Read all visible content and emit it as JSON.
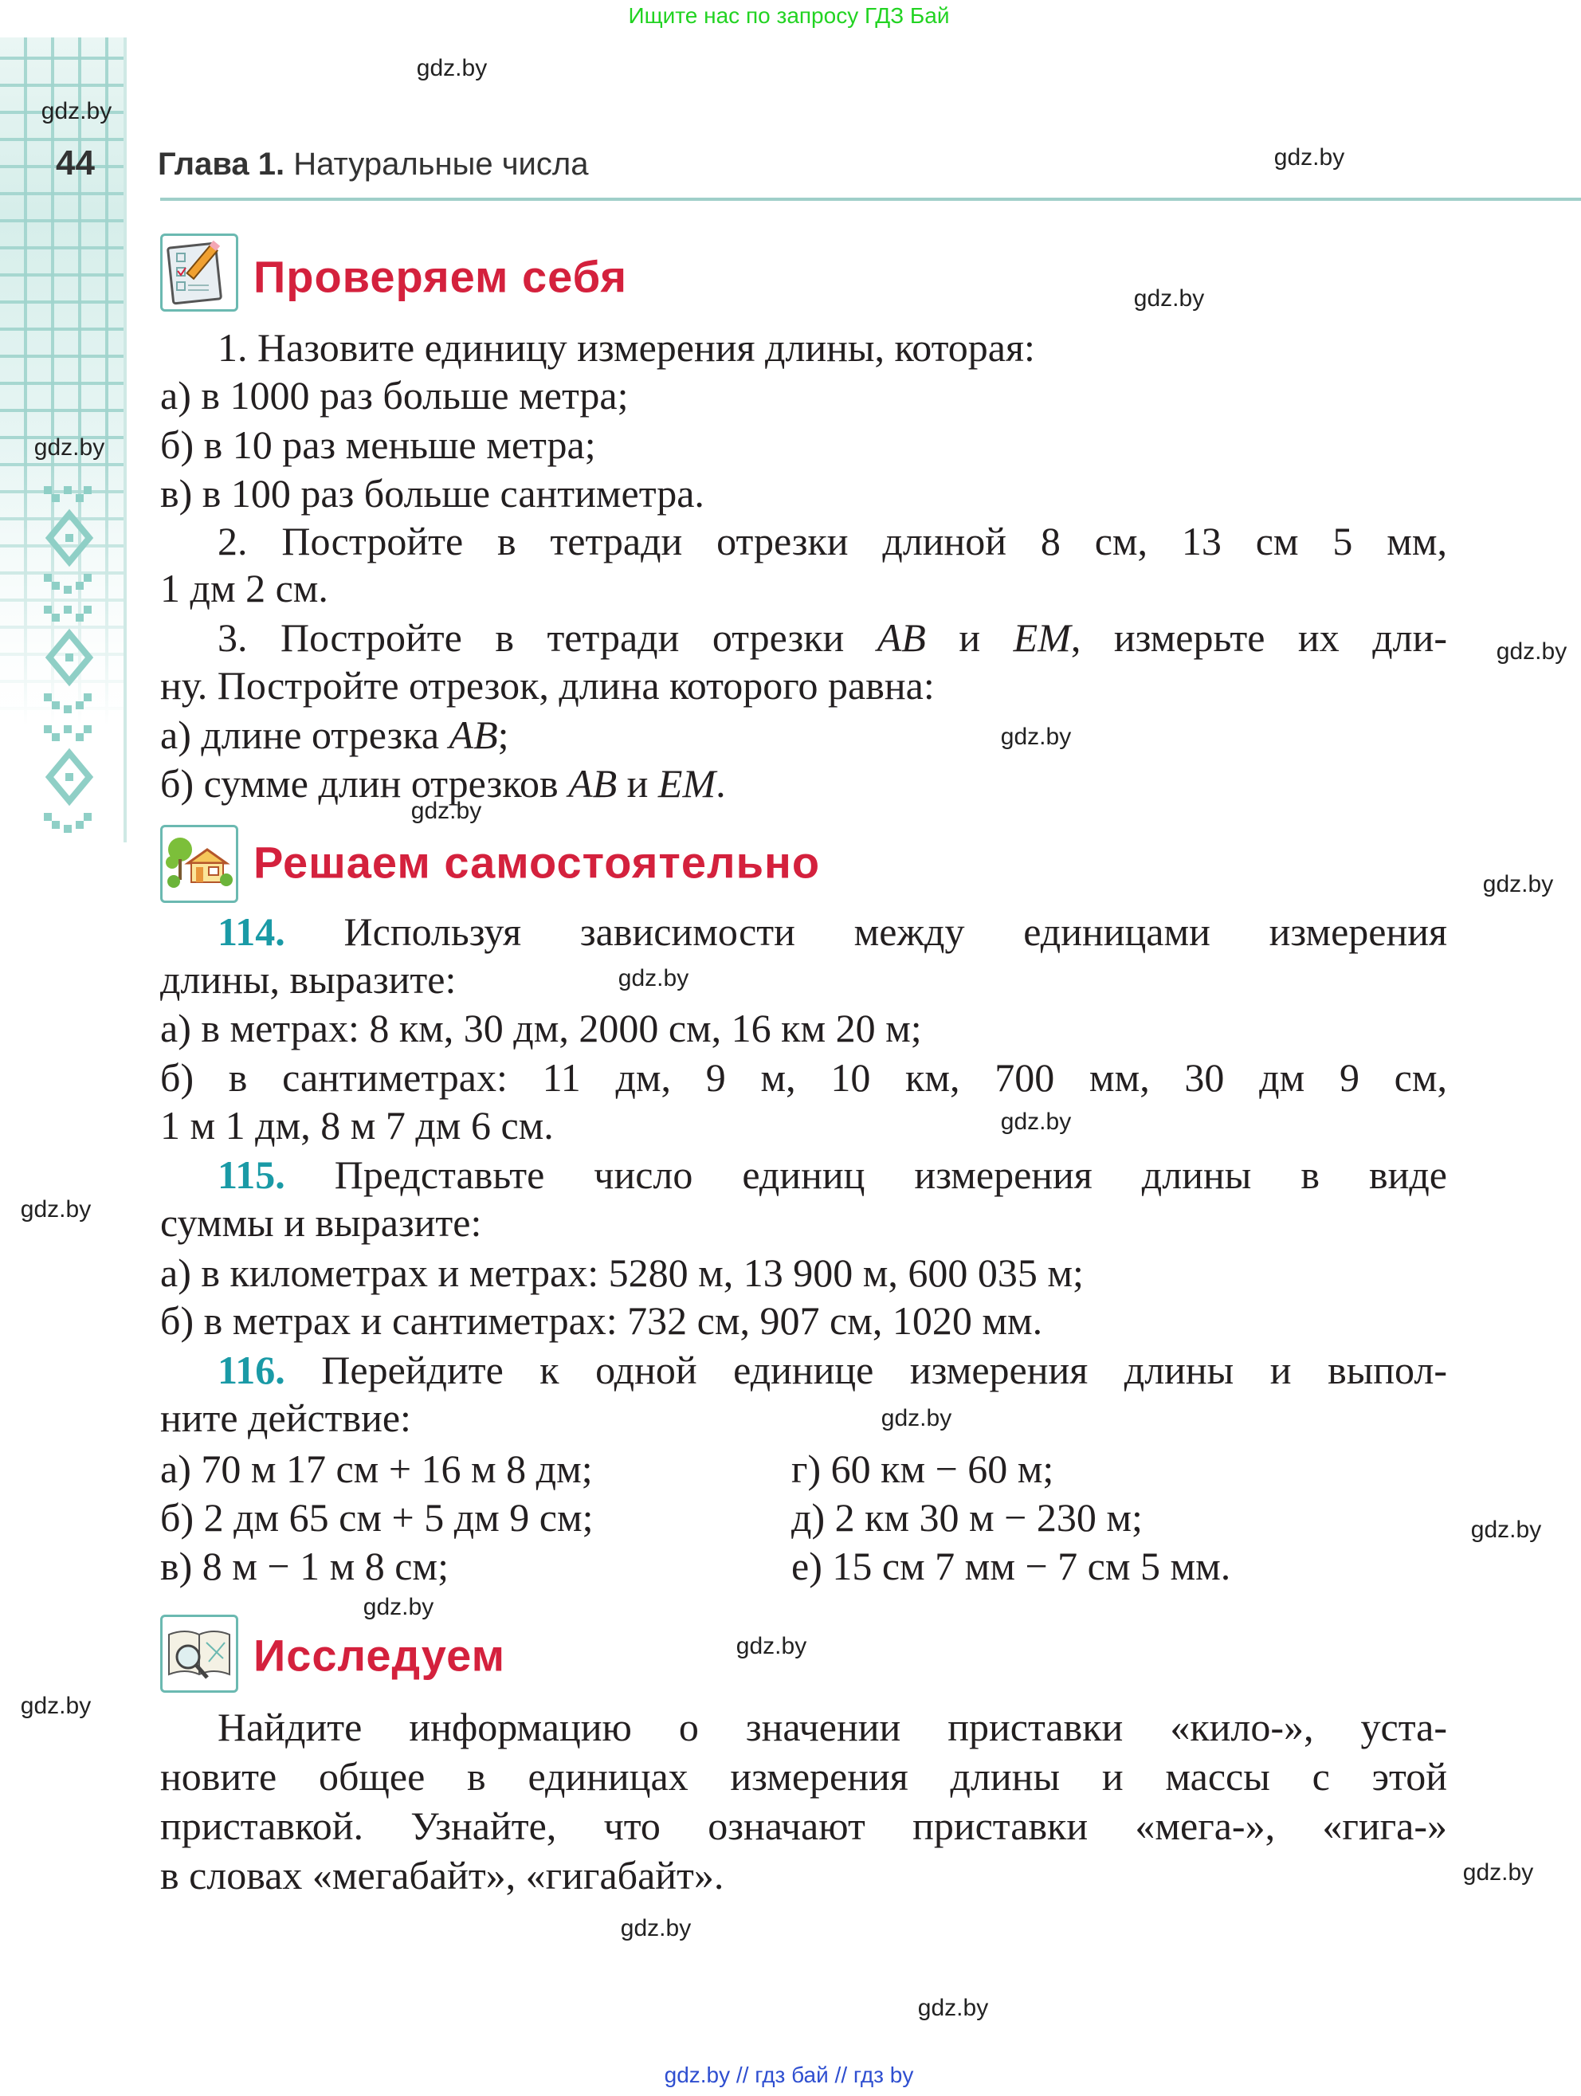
{
  "top_note": "Ищите нас по запросу ГДЗ Бай",
  "header": {
    "page_number": "44",
    "chapter_label": "Глава 1.",
    "chapter_title": "Натуральные числа"
  },
  "watermark": "gdz.by",
  "footer": "gdz.by  //  гдз бай  //  гдз by",
  "colors": {
    "heading": "#d4213d",
    "exercise_number": "#1a9aa6",
    "accent_rule": "#9fcfc9",
    "top_note": "#22d322",
    "footer": "#2f4fd0"
  },
  "check": {
    "icon": "checklist-pencil-icon",
    "title": "Проверяем себя",
    "lines": [
      [
        {
          "t": "1. Назовите единицу измерения длины, которая:"
        }
      ],
      [
        {
          "t": "а) в 1000 раз больше метра;"
        }
      ],
      [
        {
          "t": "б) в 10 раз меньше метра;"
        }
      ],
      [
        {
          "t": "в) в 100 раз больше сантиметра."
        }
      ],
      [
        {
          "t": "2. Постройте в тетради отрезки длиной 8 см, 13 см 5 мм,"
        }
      ],
      [
        {
          "t": "1 дм 2 см."
        }
      ],
      [
        {
          "t": "3. Постройте в тетради отрезки "
        },
        {
          "t": "AB",
          "i": true
        },
        {
          "t": " и "
        },
        {
          "t": "EM",
          "i": true
        },
        {
          "t": ", измерьте их дли-"
        }
      ],
      [
        {
          "t": "ну. Постройте отрезок, длина которого равна:"
        }
      ],
      [
        {
          "t": "а) длине отрезка "
        },
        {
          "t": "AB",
          "i": true
        },
        {
          "t": ";"
        }
      ],
      [
        {
          "t": "б) сумме длин отрезков "
        },
        {
          "t": "AB",
          "i": true
        },
        {
          "t": " и "
        },
        {
          "t": "EM",
          "i": true
        },
        {
          "t": "."
        }
      ]
    ]
  },
  "solve": {
    "icon": "house-tree-icon",
    "title": "Решаем самостоятельно",
    "lines": [
      [
        {
          "t": "114.",
          "n": true
        },
        {
          "t": " Используя зависимости между единицами измерения"
        }
      ],
      [
        {
          "t": "длины, выразите:"
        }
      ],
      [
        {
          "t": "а) в метрах: 8 км, 30 дм, 2000 см, 16 км 20 м;"
        }
      ],
      [
        {
          "t": "б) в сантиметрах: 11 дм, 9 м, 10 км, 700 мм, 30 дм 9 см,"
        }
      ],
      [
        {
          "t": "1 м 1 дм, 8 м 7 дм 6 см."
        }
      ],
      [
        {
          "t": "115.",
          "n": true
        },
        {
          "t": " Представьте число единиц измерения длины в виде"
        }
      ],
      [
        {
          "t": "суммы и выразите:"
        }
      ],
      [
        {
          "t": "а) в километрах и метрах: 5280 м, 13 900 м, 600 035 м;"
        }
      ],
      [
        {
          "t": "б) в метрах и сантиметрах: 732 см, 907 см, 1020 мм."
        }
      ],
      [
        {
          "t": "116.",
          "n": true
        },
        {
          "t": " Перейдите к одной единице измерения длины и выпол-"
        }
      ],
      [
        {
          "t": "ните действие:"
        }
      ]
    ],
    "columns": [
      [
        "а) 70 м 17 см + 16 м 8 дм;",
        "б) 2 дм 65 см + 5 дм 9 см;",
        "в) 8 м − 1 м 8 см;"
      ],
      [
        "г) 60 км − 60 м;",
        "д) 2 км 30 м − 230 м;",
        "е) 15 см 7 мм − 7 см 5 мм."
      ]
    ]
  },
  "explore": {
    "icon": "book-magnifier-icon",
    "title": "Исследуем",
    "lines": [
      [
        {
          "t": "Найдите информацию о значении приставки «кило-», уста-"
        }
      ],
      [
        {
          "t": "новите общее в единицах измерения длины и массы с этой"
        }
      ],
      [
        {
          "t": "приставкой. Узнайте, что означают приставки «мега-», «гига-»"
        }
      ],
      [
        {
          "t": "в словах «мегабайт», «гигабайт»."
        }
      ]
    ]
  }
}
